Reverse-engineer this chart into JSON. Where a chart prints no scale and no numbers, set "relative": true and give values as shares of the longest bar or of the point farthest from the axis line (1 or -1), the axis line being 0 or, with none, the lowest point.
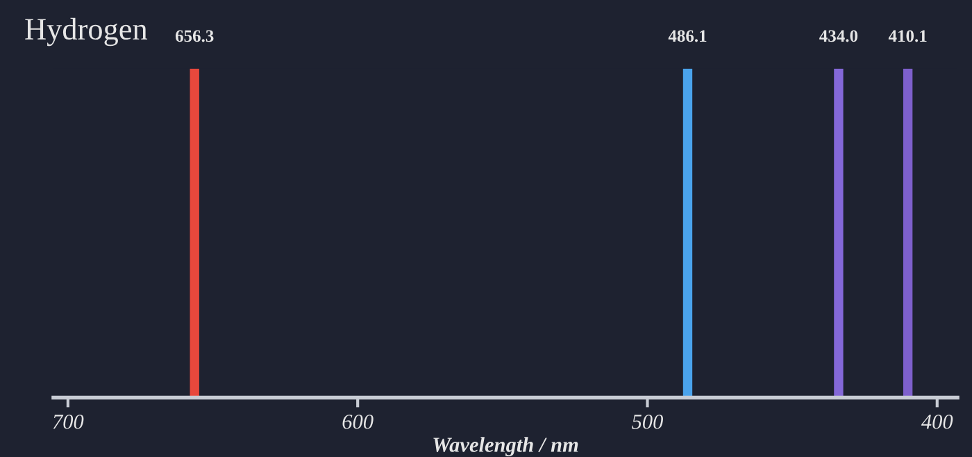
{
  "chart_data": {
    "type": "bar",
    "title": "Hydrogen",
    "xlabel": "Wavelength / nm",
    "xlim": [
      705,
      393
    ],
    "xticks": [
      700,
      600,
      500,
      400
    ],
    "relative": true,
    "x": [
      656.3,
      486.1,
      434.0,
      410.1
    ],
    "values": [
      1,
      1,
      1,
      1
    ],
    "colors": [
      "#e8483c",
      "#4aa3ec",
      "#8468d8",
      "#7e60cc"
    ],
    "annotations": [
      {
        "text": "656.3",
        "x": 656.3,
        "y": 1
      },
      {
        "text": "486.1",
        "x": 486.1,
        "y": 1
      },
      {
        "text": "434.0",
        "x": 434.0,
        "y": 1
      },
      {
        "text": "410.1",
        "x": 410.1,
        "y": 1
      }
    ]
  }
}
